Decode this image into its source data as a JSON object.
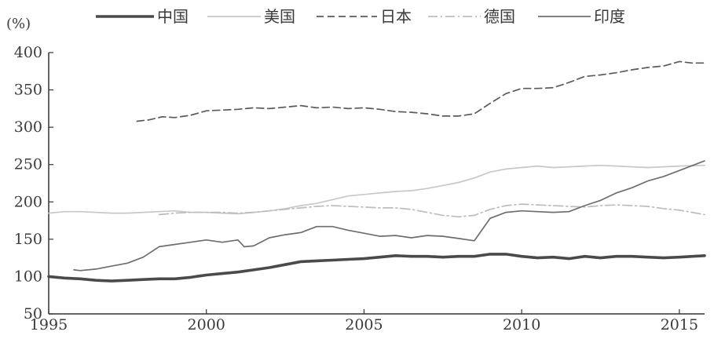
{
  "chart_data": {
    "type": "line",
    "title": "",
    "xlabel": "",
    "ylabel": "(%)",
    "xlim": [
      1995,
      2015.8
    ],
    "ylim": [
      50,
      400
    ],
    "xticks": [
      "1995",
      "2000",
      "2005",
      "2010",
      "2015"
    ],
    "yticks": [
      "50",
      "100",
      "150",
      "200",
      "250",
      "300",
      "350",
      "400"
    ],
    "grid": false,
    "legend_position": "top",
    "series": [
      {
        "name": "中国",
        "color": "#4a4a4a",
        "style": "thick",
        "x": [
          1995,
          1995.5,
          1996,
          1996.5,
          1997,
          1997.5,
          1998,
          1998.5,
          1999,
          1999.5,
          2000,
          2000.5,
          2001,
          2001.5,
          2002,
          2002.5,
          2003,
          2003.5,
          2004,
          2004.5,
          2005,
          2005.5,
          2006,
          2006.5,
          2007,
          2007.5,
          2008,
          2008.5,
          2009,
          2009.5,
          2010,
          2010.5,
          2011,
          2011.5,
          2012,
          2012.5,
          2013,
          2013.5,
          2014,
          2014.5,
          2015,
          2015.8
        ],
        "y": [
          100,
          98,
          97,
          95,
          94,
          95,
          96,
          97,
          97,
          99,
          102,
          104,
          106,
          109,
          112,
          116,
          120,
          121,
          122,
          123,
          124,
          126,
          128,
          127,
          127,
          126,
          127,
          127,
          130,
          130,
          127,
          125,
          126,
          124,
          127,
          125,
          127,
          127,
          126,
          125,
          126,
          128
        ]
      },
      {
        "name": "美国",
        "color": "#c8c8c8",
        "style": "solid",
        "x": [
          1995,
          1995.5,
          1996,
          1996.5,
          1997,
          1997.5,
          1998,
          1998.5,
          1999,
          1999.5,
          2000,
          2000.5,
          2001,
          2001.5,
          2002,
          2002.5,
          2003,
          2003.5,
          2004,
          2004.5,
          2005,
          2005.5,
          2006,
          2006.5,
          2007,
          2007.5,
          2008,
          2008.5,
          2009,
          2009.5,
          2010,
          2010.5,
          2011,
          2011.5,
          2012,
          2012.5,
          2013,
          2013.5,
          2014,
          2014.5,
          2015,
          2015.8
        ],
        "y": [
          185,
          187,
          187,
          186,
          185,
          185,
          186,
          187,
          188,
          186,
          186,
          185,
          184,
          186,
          188,
          191,
          195,
          198,
          203,
          208,
          210,
          212,
          214,
          215,
          218,
          222,
          226,
          232,
          240,
          244,
          246,
          248,
          246,
          247,
          248,
          249,
          248,
          247,
          246,
          247,
          248,
          249
        ]
      },
      {
        "name": "日本",
        "color": "#5a5a5a",
        "style": "dashed",
        "x": [
          1997.8,
          1998.2,
          1998.6,
          1999,
          1999.5,
          2000,
          2000.5,
          2001,
          2001.5,
          2002,
          2002.5,
          2003,
          2003.5,
          2004,
          2004.5,
          2005,
          2005.5,
          2006,
          2006.5,
          2007,
          2007.5,
          2008,
          2008.5,
          2009,
          2009.5,
          2010,
          2010.5,
          2011,
          2011.5,
          2012,
          2012.5,
          2013,
          2013.5,
          2014,
          2014.5,
          2015,
          2015.4,
          2015.8
        ],
        "y": [
          308,
          310,
          314,
          313,
          316,
          322,
          323,
          324,
          326,
          325,
          327,
          329,
          326,
          327,
          325,
          326,
          324,
          321,
          320,
          318,
          315,
          315,
          318,
          332,
          345,
          352,
          352,
          353,
          360,
          368,
          370,
          373,
          377,
          380,
          382,
          388,
          386,
          386
        ]
      },
      {
        "name": "德国",
        "color": "#bdbdbd",
        "style": "dashdot",
        "x": [
          1998.5,
          1999,
          1999.5,
          2000,
          2000.5,
          2001,
          2001.5,
          2002,
          2002.5,
          2003,
          2003.5,
          2004,
          2004.5,
          2005,
          2005.5,
          2006,
          2006.5,
          2007,
          2007.5,
          2008,
          2008.5,
          2009,
          2009.5,
          2010,
          2010.5,
          2011,
          2011.5,
          2012,
          2012.5,
          2013,
          2013.5,
          2014,
          2014.5,
          2015,
          2015.8
        ],
        "y": [
          183,
          185,
          186,
          186,
          186,
          185,
          186,
          188,
          190,
          192,
          194,
          195,
          194,
          193,
          192,
          192,
          190,
          186,
          182,
          180,
          182,
          190,
          195,
          197,
          196,
          195,
          194,
          193,
          195,
          196,
          195,
          194,
          191,
          189,
          183
        ]
      },
      {
        "name": "印度",
        "color": "#6e6e6e",
        "style": "solid",
        "x": [
          1995.8,
          1996,
          1996.5,
          1997,
          1997.5,
          1998,
          1998.5,
          1999,
          1999.5,
          2000,
          2000.5,
          2001,
          2001.2,
          2001.5,
          2002,
          2002.5,
          2003,
          2003.5,
          2004,
          2004.5,
          2005,
          2005.5,
          2006,
          2006.5,
          2007,
          2007.5,
          2008,
          2008.5,
          2009,
          2009.5,
          2010,
          2010.5,
          2011,
          2011.5,
          2012,
          2012.5,
          2013,
          2013.5,
          2014,
          2014.5,
          2015,
          2015.8
        ],
        "y": [
          109,
          108,
          110,
          114,
          118,
          126,
          140,
          143,
          146,
          149,
          146,
          149,
          140,
          141,
          152,
          156,
          159,
          167,
          167,
          162,
          158,
          154,
          155,
          152,
          155,
          154,
          151,
          148,
          178,
          186,
          188,
          187,
          186,
          187,
          195,
          202,
          212,
          219,
          228,
          234,
          242,
          255
        ]
      }
    ]
  }
}
